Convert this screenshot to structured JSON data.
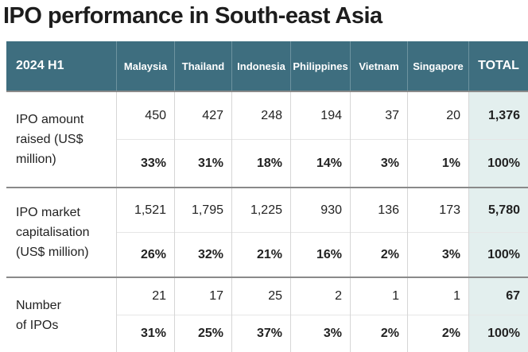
{
  "title": "IPO performance in South-east Asia",
  "table": {
    "header": [
      "2024 H1",
      "Malaysia",
      "Thailand",
      "Indonesia",
      "Philippines",
      "Vietnam",
      "Singapore",
      "TOTAL"
    ],
    "groups": [
      {
        "label": "IPO amount raised (US$ million)",
        "values": [
          "450",
          "427",
          "248",
          "194",
          "37",
          "20",
          "1,376"
        ],
        "shares": [
          "33%",
          "31%",
          "18%",
          "14%",
          "3%",
          "1%",
          "100%"
        ]
      },
      {
        "label": "IPO market capitalisation (US$ million)",
        "values": [
          "1,521",
          "1,795",
          "1,225",
          "930",
          "136",
          "173",
          "5,780"
        ],
        "shares": [
          "26%",
          "32%",
          "21%",
          "16%",
          "2%",
          "3%",
          "100%"
        ]
      },
      {
        "label": "Number of IPOs",
        "values": [
          "21",
          "17",
          "25",
          "2",
          "1",
          "1",
          "67"
        ],
        "shares": [
          "31%",
          "25%",
          "37%",
          "3%",
          "2%",
          "2%",
          "100%"
        ]
      }
    ]
  }
}
